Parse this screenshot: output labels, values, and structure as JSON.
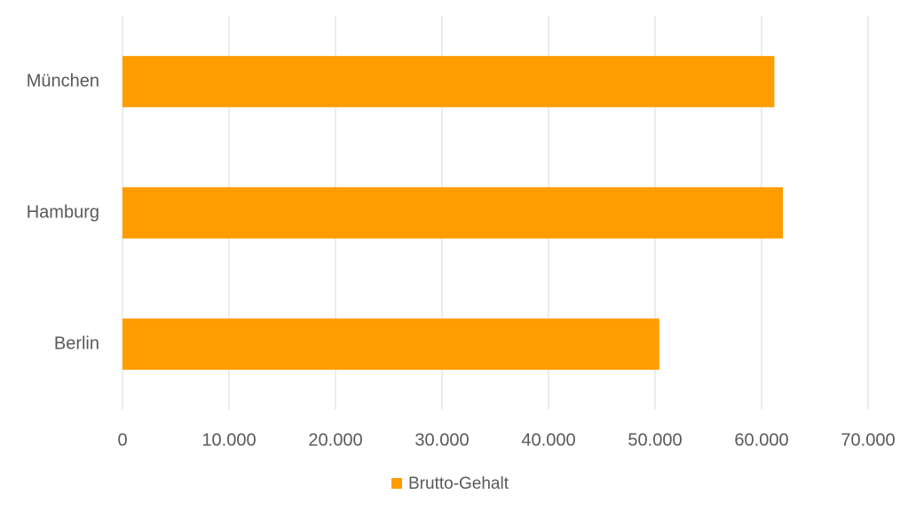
{
  "chart_data": {
    "type": "hbar",
    "categories": [
      "München",
      "Hamburg",
      "Berlin"
    ],
    "series": [
      {
        "name": "Brutto-Gehalt",
        "color": "#ff9c00",
        "values": [
          61200,
          62000,
          50400
        ]
      }
    ],
    "xlim": [
      0,
      70000
    ],
    "xticks": [
      0,
      {
        "value": 10000,
        "label": "10.000"
      },
      {
        "value": 20000,
        "label": "20.000"
      },
      {
        "value": 30000,
        "label": "30.000"
      },
      {
        "value": 40000,
        "label": "40.000"
      },
      {
        "value": 50000,
        "label": "50.000"
      },
      {
        "value": 60000,
        "label": "60.000"
      },
      {
        "value": 70000,
        "label": "70.000"
      }
    ],
    "grid": true,
    "legend": "bottom"
  }
}
